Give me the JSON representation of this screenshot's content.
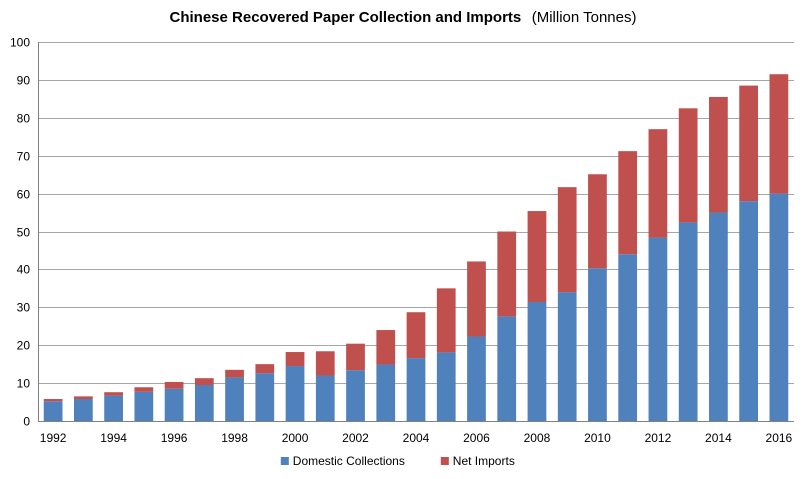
{
  "chart_data": {
    "type": "bar",
    "stacked": true,
    "title": "Chinese Recovered Paper Collection and Imports",
    "title_unit": "(Million Tonnes)",
    "xlabel": "",
    "ylabel": "",
    "categories": [
      "1992",
      "1993",
      "1994",
      "1995",
      "1996",
      "1997",
      "1998",
      "1999",
      "2000",
      "2001",
      "2002",
      "2003",
      "2004",
      "2005",
      "2006",
      "2007",
      "2008",
      "2009",
      "2010",
      "2011",
      "2012",
      "2013",
      "2014",
      "2015",
      "2016"
    ],
    "x_tick_labels": [
      "1992",
      "1994",
      "1996",
      "1998",
      "2000",
      "2002",
      "2004",
      "2006",
      "2008",
      "2010",
      "2012",
      "2014",
      "2016"
    ],
    "y_ticks": [
      0,
      10,
      20,
      30,
      40,
      50,
      60,
      70,
      80,
      90,
      100
    ],
    "ylim": [
      0,
      100
    ],
    "grid": true,
    "legend_position": "bottom",
    "series": [
      {
        "name": "Domestic Collections",
        "color": "#4f81bd",
        "values": [
          5.2,
          5.8,
          6.7,
          7.7,
          8.5,
          9.5,
          11.5,
          12.6,
          14.5,
          12.0,
          13.4,
          14.9,
          16.6,
          18.1,
          22.3,
          27.6,
          31.4,
          34.0,
          40.3,
          44.0,
          48.4,
          52.4,
          55.0,
          58.0,
          60.0
        ]
      },
      {
        "name": "Net Imports",
        "color": "#c0504d",
        "values": [
          0.6,
          0.7,
          0.9,
          1.2,
          1.8,
          1.8,
          2.0,
          2.4,
          3.7,
          6.4,
          7.0,
          9.1,
          12.1,
          16.9,
          19.8,
          22.4,
          24.0,
          27.7,
          24.8,
          27.2,
          28.6,
          30.1,
          30.5,
          30.5,
          31.5
        ]
      }
    ]
  }
}
